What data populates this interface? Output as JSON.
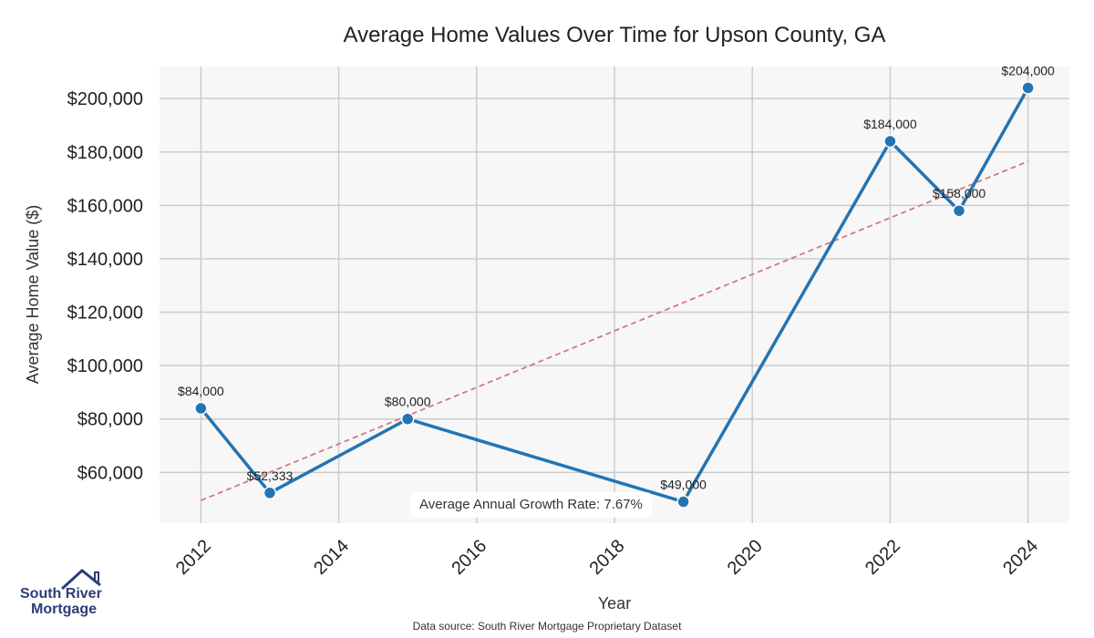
{
  "chart_data": {
    "type": "line",
    "title": "Average Home Values Over Time for Upson County, GA",
    "xlabel": "Year",
    "ylabel": "Average Home Value ($)",
    "x": [
      2012,
      2013,
      2015,
      2019,
      2022,
      2023,
      2024
    ],
    "values": [
      84000,
      52333,
      80000,
      49000,
      184000,
      158000,
      204000
    ],
    "data_labels": [
      "$84,000",
      "$52,333",
      "$80,000",
      "$49,000",
      "$184,000",
      "$158,000",
      "$204,000"
    ],
    "xlim": [
      2011.4,
      2024.6
    ],
    "ylim": [
      41000,
      212000
    ],
    "x_ticks": [
      2012,
      2014,
      2016,
      2018,
      2020,
      2022,
      2024
    ],
    "x_tick_labels": [
      "2012",
      "2014",
      "2016",
      "2018",
      "2020",
      "2022",
      "2024"
    ],
    "y_ticks": [
      60000,
      80000,
      100000,
      120000,
      140000,
      160000,
      180000,
      200000
    ],
    "y_tick_labels": [
      "$60,000",
      "$80,000",
      "$100,000",
      "$120,000",
      "$140,000",
      "$160,000",
      "$180,000",
      "$200,000"
    ],
    "trendline": {
      "x": [
        2012,
        2024
      ],
      "y": [
        49500,
        176500
      ],
      "style": "dashed"
    },
    "grid": true,
    "annotation": "Average Annual Growth Rate: 7.67%",
    "colors": {
      "line": "#2474b2",
      "trend": "#d47a7a",
      "plot_bg": "#f7f7f7",
      "grid": "#cccccc"
    }
  },
  "branding": {
    "logo_line1": "South River",
    "logo_line2": "Mortgage"
  },
  "footer": {
    "source": "Data source: South River Mortgage Proprietary Dataset"
  }
}
